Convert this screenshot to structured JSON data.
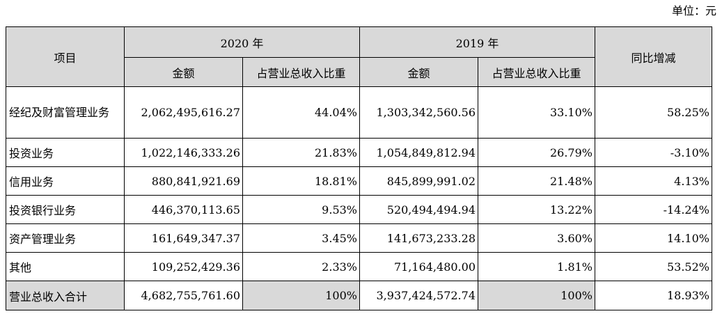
{
  "unit_label": "单位：元",
  "header": {
    "item": "项目",
    "year_2020": "2020 年",
    "year_2019": "2019 年",
    "yoy": "同比增减",
    "amount": "金额",
    "ratio": "占营业总收入比重"
  },
  "rows": [
    {
      "item": "经纪及财富管理业务",
      "amt2020": "2,062,495,616.27",
      "ratio2020": "44.04%",
      "amt2019": "1,303,342,560.56",
      "ratio2019": "33.10%",
      "yoy": "58.25%"
    },
    {
      "item": "投资业务",
      "amt2020": "1,022,146,333.26",
      "ratio2020": "21.83%",
      "amt2019": "1,054,849,812.94",
      "ratio2019": "26.79%",
      "yoy": "-3.10%"
    },
    {
      "item": "信用业务",
      "amt2020": "880,841,921.69",
      "ratio2020": "18.81%",
      "amt2019": "845,899,991.02",
      "ratio2019": "21.48%",
      "yoy": "4.13%"
    },
    {
      "item": "投资银行业务",
      "amt2020": "446,370,113.65",
      "ratio2020": "9.53%",
      "amt2019": "520,494,494.94",
      "ratio2019": "13.22%",
      "yoy": "-14.24%"
    },
    {
      "item": "资产管理业务",
      "amt2020": "161,649,347.37",
      "ratio2020": "3.45%",
      "amt2019": "141,673,233.28",
      "ratio2019": "3.60%",
      "yoy": "14.10%"
    },
    {
      "item": "其他",
      "amt2020": "109,252,429.36",
      "ratio2020": "2.33%",
      "amt2019": "71,164,480.00",
      "ratio2019": "1.81%",
      "yoy": "53.52%"
    }
  ],
  "total": {
    "item": "营业总收入合计",
    "amt2020": "4,682,755,761.60",
    "ratio2020": "100%",
    "amt2019": "3,937,424,572.74",
    "ratio2019": "100%",
    "yoy": "18.93%"
  }
}
